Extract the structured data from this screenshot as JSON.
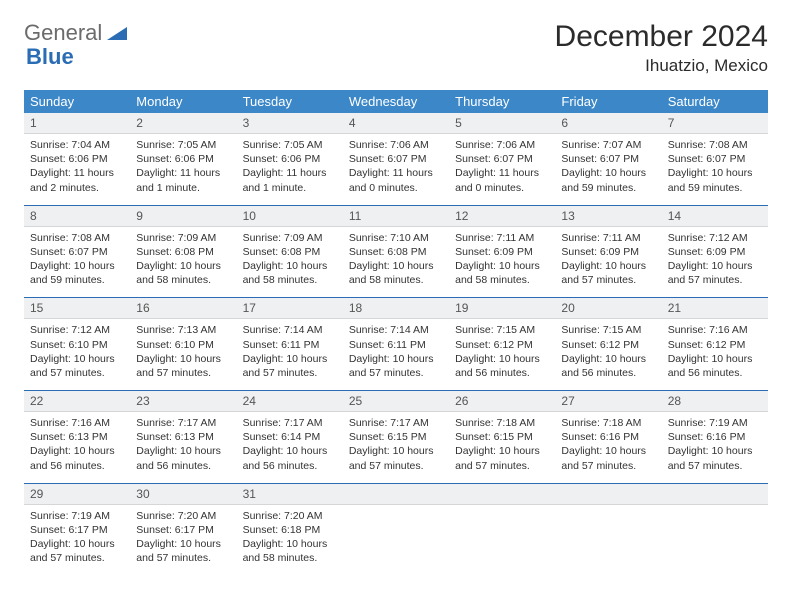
{
  "brand": {
    "part1": "General",
    "part2": "Blue"
  },
  "title": "December 2024",
  "location": "Ihuatzio, Mexico",
  "colors": {
    "header_bg": "#3b87c8",
    "header_text": "#ffffff",
    "daynum_bg": "#eef0f2",
    "accent": "#2a6db4",
    "text": "#333333"
  },
  "dayNames": [
    "Sunday",
    "Monday",
    "Tuesday",
    "Wednesday",
    "Thursday",
    "Friday",
    "Saturday"
  ],
  "weeks": [
    [
      {
        "n": "1",
        "sr": "7:04 AM",
        "ss": "6:06 PM",
        "dl": "11 hours and 2 minutes."
      },
      {
        "n": "2",
        "sr": "7:05 AM",
        "ss": "6:06 PM",
        "dl": "11 hours and 1 minute."
      },
      {
        "n": "3",
        "sr": "7:05 AM",
        "ss": "6:06 PM",
        "dl": "11 hours and 1 minute."
      },
      {
        "n": "4",
        "sr": "7:06 AM",
        "ss": "6:07 PM",
        "dl": "11 hours and 0 minutes."
      },
      {
        "n": "5",
        "sr": "7:06 AM",
        "ss": "6:07 PM",
        "dl": "11 hours and 0 minutes."
      },
      {
        "n": "6",
        "sr": "7:07 AM",
        "ss": "6:07 PM",
        "dl": "10 hours and 59 minutes."
      },
      {
        "n": "7",
        "sr": "7:08 AM",
        "ss": "6:07 PM",
        "dl": "10 hours and 59 minutes."
      }
    ],
    [
      {
        "n": "8",
        "sr": "7:08 AM",
        "ss": "6:07 PM",
        "dl": "10 hours and 59 minutes."
      },
      {
        "n": "9",
        "sr": "7:09 AM",
        "ss": "6:08 PM",
        "dl": "10 hours and 58 minutes."
      },
      {
        "n": "10",
        "sr": "7:09 AM",
        "ss": "6:08 PM",
        "dl": "10 hours and 58 minutes."
      },
      {
        "n": "11",
        "sr": "7:10 AM",
        "ss": "6:08 PM",
        "dl": "10 hours and 58 minutes."
      },
      {
        "n": "12",
        "sr": "7:11 AM",
        "ss": "6:09 PM",
        "dl": "10 hours and 58 minutes."
      },
      {
        "n": "13",
        "sr": "7:11 AM",
        "ss": "6:09 PM",
        "dl": "10 hours and 57 minutes."
      },
      {
        "n": "14",
        "sr": "7:12 AM",
        "ss": "6:09 PM",
        "dl": "10 hours and 57 minutes."
      }
    ],
    [
      {
        "n": "15",
        "sr": "7:12 AM",
        "ss": "6:10 PM",
        "dl": "10 hours and 57 minutes."
      },
      {
        "n": "16",
        "sr": "7:13 AM",
        "ss": "6:10 PM",
        "dl": "10 hours and 57 minutes."
      },
      {
        "n": "17",
        "sr": "7:14 AM",
        "ss": "6:11 PM",
        "dl": "10 hours and 57 minutes."
      },
      {
        "n": "18",
        "sr": "7:14 AM",
        "ss": "6:11 PM",
        "dl": "10 hours and 57 minutes."
      },
      {
        "n": "19",
        "sr": "7:15 AM",
        "ss": "6:12 PM",
        "dl": "10 hours and 56 minutes."
      },
      {
        "n": "20",
        "sr": "7:15 AM",
        "ss": "6:12 PM",
        "dl": "10 hours and 56 minutes."
      },
      {
        "n": "21",
        "sr": "7:16 AM",
        "ss": "6:12 PM",
        "dl": "10 hours and 56 minutes."
      }
    ],
    [
      {
        "n": "22",
        "sr": "7:16 AM",
        "ss": "6:13 PM",
        "dl": "10 hours and 56 minutes."
      },
      {
        "n": "23",
        "sr": "7:17 AM",
        "ss": "6:13 PM",
        "dl": "10 hours and 56 minutes."
      },
      {
        "n": "24",
        "sr": "7:17 AM",
        "ss": "6:14 PM",
        "dl": "10 hours and 56 minutes."
      },
      {
        "n": "25",
        "sr": "7:17 AM",
        "ss": "6:15 PM",
        "dl": "10 hours and 57 minutes."
      },
      {
        "n": "26",
        "sr": "7:18 AM",
        "ss": "6:15 PM",
        "dl": "10 hours and 57 minutes."
      },
      {
        "n": "27",
        "sr": "7:18 AM",
        "ss": "6:16 PM",
        "dl": "10 hours and 57 minutes."
      },
      {
        "n": "28",
        "sr": "7:19 AM",
        "ss": "6:16 PM",
        "dl": "10 hours and 57 minutes."
      }
    ],
    [
      {
        "n": "29",
        "sr": "7:19 AM",
        "ss": "6:17 PM",
        "dl": "10 hours and 57 minutes."
      },
      {
        "n": "30",
        "sr": "7:20 AM",
        "ss": "6:17 PM",
        "dl": "10 hours and 57 minutes."
      },
      {
        "n": "31",
        "sr": "7:20 AM",
        "ss": "6:18 PM",
        "dl": "10 hours and 58 minutes."
      },
      null,
      null,
      null,
      null
    ]
  ],
  "labels": {
    "sunrise": "Sunrise:",
    "sunset": "Sunset:",
    "daylight": "Daylight:"
  }
}
